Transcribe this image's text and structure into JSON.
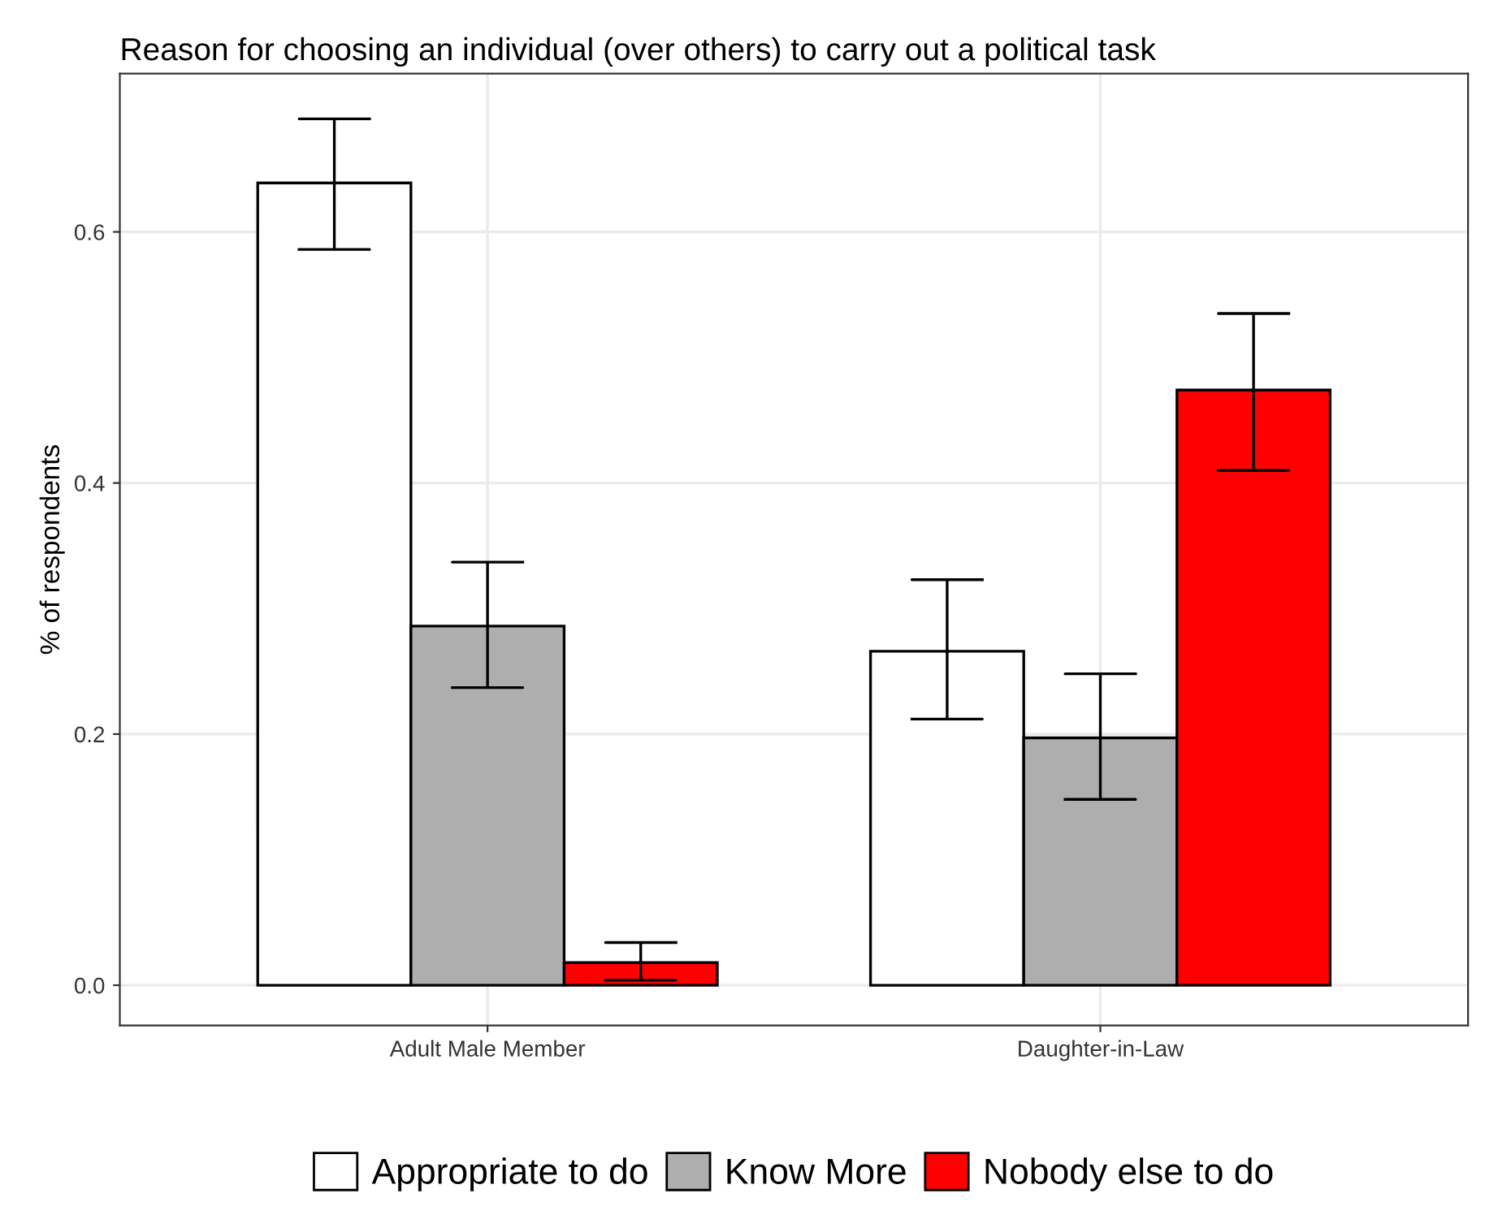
{
  "chart_data": {
    "type": "bar",
    "title": "Reason for choosing an individual (over others) to carry out a political task",
    "ylabel": "% of respondents",
    "categories": [
      "Adult Male Member",
      "Daughter-in-Law"
    ],
    "series": [
      {
        "name": "Appropriate to do",
        "color": "#ffffff",
        "values": [
          0.639,
          0.266
        ],
        "errors": [
          [
            0.586,
            0.69
          ],
          [
            0.212,
            0.323
          ]
        ]
      },
      {
        "name": "Know More",
        "color": "#aeaeae",
        "values": [
          0.286,
          0.197
        ],
        "errors": [
          [
            0.237,
            0.337
          ],
          [
            0.148,
            0.248
          ]
        ]
      },
      {
        "name": "Nobody else to do",
        "color": "#ff0000",
        "values": [
          0.018,
          0.474
        ],
        "errors": [
          [
            0.004,
            0.034
          ],
          [
            0.41,
            0.535
          ]
        ]
      }
    ],
    "ylim": [
      -0.032,
      0.726
    ],
    "yticks": [
      {
        "value": 0,
        "label": "0.0"
      },
      0.2,
      0.4,
      0.6
    ],
    "grid": true,
    "legend": "bottom"
  }
}
